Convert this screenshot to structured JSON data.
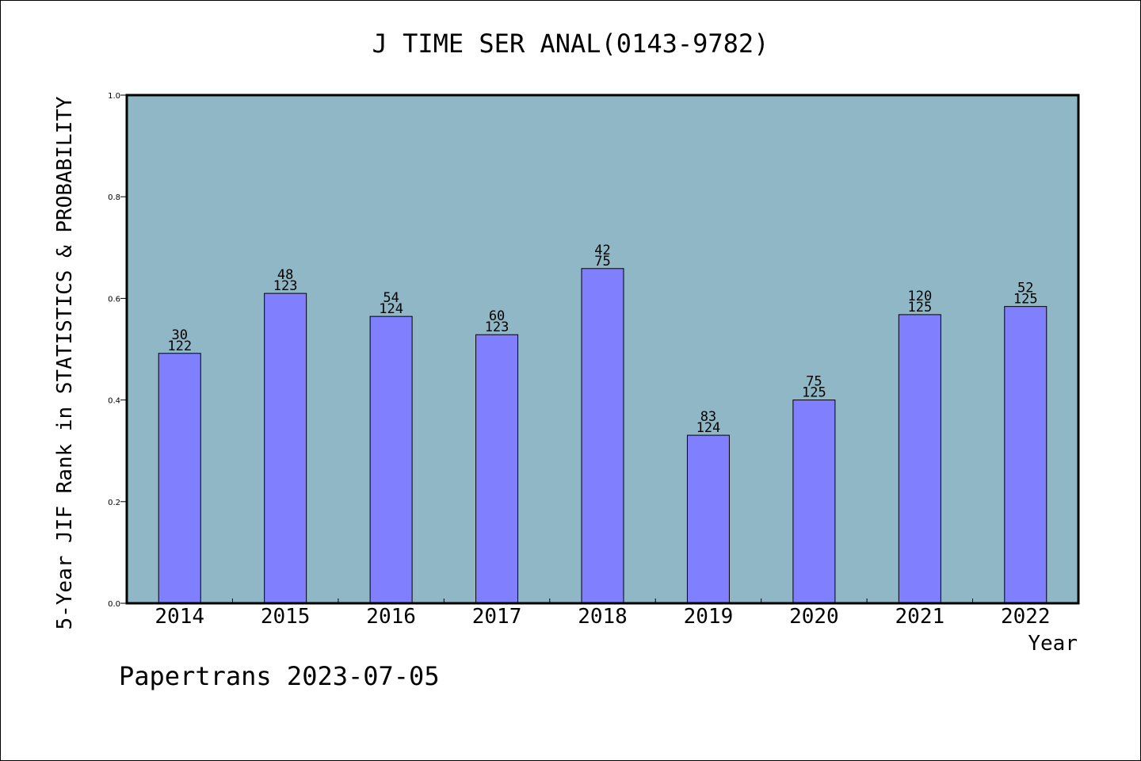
{
  "footer": "Papertrans 2023-07-05",
  "chart_data": {
    "type": "bar",
    "title": "J TIME SER ANAL(0143-9782)",
    "xlabel": "Year",
    "ylabel": "5-Year JIF Rank in STATISTICS & PROBABILITY",
    "categories": [
      "2014",
      "2015",
      "2016",
      "2017",
      "2018",
      "2019",
      "2020",
      "2021",
      "2022"
    ],
    "values": [
      0.4918,
      0.6098,
      0.5645,
      0.5285,
      0.6587,
      0.3306,
      0.4,
      0.568,
      0.584
    ],
    "annotations": [
      {
        "rank": "30",
        "total": "122"
      },
      {
        "rank": "48",
        "total": "123"
      },
      {
        "rank": "54",
        "total": "124"
      },
      {
        "rank": "60",
        "total": "123"
      },
      {
        "rank": "42",
        "total": "75"
      },
      {
        "rank": "83",
        "total": "124"
      },
      {
        "rank": "75",
        "total": "125"
      },
      {
        "rank": "120",
        "total": "125"
      },
      {
        "rank": "52",
        "total": "125"
      }
    ],
    "ylim": [
      0,
      1
    ],
    "yticks": [
      "0.0",
      "0.2",
      "0.4",
      "0.6",
      "0.8",
      "1.0"
    ],
    "grid": false,
    "colors": {
      "plot_bg": "#8fb7c5",
      "bar": "#8080ff",
      "bar_edge": "#000000"
    }
  }
}
